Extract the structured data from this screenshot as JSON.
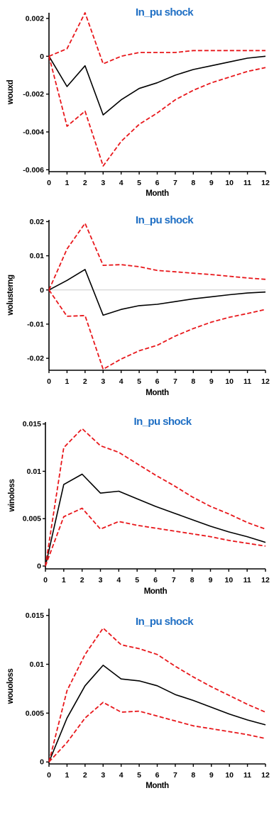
{
  "chart_data": [
    {
      "type": "line",
      "title": "In_pu shock",
      "xlabel": "Month",
      "ylabel": "wouxd",
      "x": [
        0,
        1,
        2,
        3,
        4,
        5,
        6,
        7,
        8,
        9,
        10,
        11,
        12
      ],
      "x_ticks": [
        "0",
        "1",
        "2",
        "3",
        "4",
        "5",
        "6",
        "7",
        "8",
        "9",
        "10",
        "11",
        "12"
      ],
      "y_ticks": [
        0.002,
        0,
        -0.002,
        -0.004,
        -0.006
      ],
      "y_tick_labels": [
        "0.002",
        "0",
        "-0.002",
        "-0.004",
        "-0.006"
      ],
      "ylim": [
        -0.0061,
        0.0023
      ],
      "zero_line": false,
      "series": [
        {
          "role": "response",
          "color": "#000000",
          "dash": false,
          "values": [
            0,
            -0.0016,
            -0.0005,
            -0.0031,
            -0.0023,
            -0.0017,
            -0.0014,
            -0.001,
            -0.0007,
            -0.0005,
            -0.0003,
            -0.0001,
            0.0
          ]
        },
        {
          "role": "upper",
          "color": "#e8171b",
          "dash": true,
          "values": [
            0,
            0.0004,
            0.0023,
            -0.0004,
            0.0,
            0.0002,
            0.0002,
            0.0002,
            0.0003,
            0.0003,
            0.0003,
            0.0003,
            0.0003
          ]
        },
        {
          "role": "lower",
          "color": "#e8171b",
          "dash": true,
          "values": [
            0,
            -0.0037,
            -0.0029,
            -0.0058,
            -0.0045,
            -0.0036,
            -0.003,
            -0.0023,
            -0.0018,
            -0.0014,
            -0.0011,
            -0.0008,
            -0.0006
          ]
        }
      ]
    },
    {
      "type": "line",
      "title": "In_pu shock",
      "xlabel": "Month",
      "ylabel": "wolusterng",
      "x": [
        0,
        1,
        2,
        3,
        4,
        5,
        6,
        7,
        8,
        9,
        10,
        11,
        12
      ],
      "x_ticks": [
        "0",
        "1",
        "2",
        "3",
        "4",
        "5",
        "6",
        "7",
        "8",
        "9",
        "10",
        "11",
        "12"
      ],
      "y_ticks": [
        0.02,
        0.01,
        0,
        -0.01,
        -0.02
      ],
      "y_tick_labels": [
        "0.02",
        "0.01",
        "0",
        "-0.01",
        "-0.02"
      ],
      "ylim": [
        -0.0235,
        0.0205
      ],
      "zero_line": true,
      "series": [
        {
          "role": "response",
          "color": "#000000",
          "dash": false,
          "values": [
            0,
            0.0028,
            0.006,
            -0.0074,
            -0.0057,
            -0.0046,
            -0.0042,
            -0.0034,
            -0.0026,
            -0.002,
            -0.0014,
            -0.0009,
            -0.0006
          ]
        },
        {
          "role": "upper",
          "color": "#e8171b",
          "dash": true,
          "values": [
            0,
            0.012,
            0.0195,
            0.0072,
            0.0074,
            0.0068,
            0.0057,
            0.0053,
            0.0049,
            0.0045,
            0.004,
            0.0035,
            0.0031
          ]
        },
        {
          "role": "lower",
          "color": "#e8171b",
          "dash": true,
          "values": [
            0,
            -0.0077,
            -0.0075,
            -0.0232,
            -0.0202,
            -0.0178,
            -0.0162,
            -0.0135,
            -0.0113,
            -0.0094,
            -0.008,
            -0.0069,
            -0.0057
          ]
        }
      ]
    },
    {
      "type": "line",
      "title": "In_pu shock",
      "xlabel": "Month",
      "ylabel": "winoloss",
      "x": [
        0,
        1,
        2,
        3,
        4,
        5,
        6,
        7,
        8,
        9,
        10,
        11,
        12
      ],
      "x_ticks": [
        "0",
        "1",
        "2",
        "3",
        "4",
        "5",
        "6",
        "7",
        "8",
        "9",
        "10",
        "11",
        "12"
      ],
      "y_ticks": [
        0.015,
        0.01,
        0.005,
        0
      ],
      "y_tick_labels": [
        "0.015",
        "0.01",
        "0.005",
        "0"
      ],
      "ylim": [
        -0.0003,
        0.0152
      ],
      "zero_line": false,
      "series": [
        {
          "role": "response",
          "color": "#000000",
          "dash": false,
          "values": [
            0,
            0.0086,
            0.0097,
            0.0077,
            0.0079,
            0.0071,
            0.0063,
            0.0056,
            0.0049,
            0.0042,
            0.0036,
            0.0031,
            0.0025
          ]
        },
        {
          "role": "upper",
          "color": "#e8171b",
          "dash": true,
          "values": [
            0,
            0.0125,
            0.0145,
            0.0127,
            0.012,
            0.0108,
            0.0096,
            0.0085,
            0.0073,
            0.0063,
            0.0055,
            0.0046,
            0.0039
          ]
        },
        {
          "role": "lower",
          "color": "#e8171b",
          "dash": true,
          "values": [
            0,
            0.0052,
            0.0061,
            0.0039,
            0.0047,
            0.0043,
            0.004,
            0.0037,
            0.0034,
            0.0031,
            0.0027,
            0.0024,
            0.0021
          ]
        }
      ]
    },
    {
      "type": "line",
      "title": "In_pu shock",
      "xlabel": "Month",
      "ylabel": "wouoloss",
      "x": [
        0,
        1,
        2,
        3,
        4,
        5,
        6,
        7,
        8,
        9,
        10,
        11,
        12
      ],
      "x_ticks": [
        "0",
        "1",
        "2",
        "3",
        "4",
        "5",
        "6",
        "7",
        "8",
        "9",
        "10",
        "11",
        "12"
      ],
      "y_ticks": [
        0.015,
        0.01,
        0.005,
        0
      ],
      "y_tick_labels": [
        "0.015",
        "0.01",
        "0.005",
        "0"
      ],
      "ylim": [
        -0.0002,
        0.0157
      ],
      "zero_line": false,
      "series": [
        {
          "role": "response",
          "color": "#000000",
          "dash": false,
          "values": [
            0,
            0.0045,
            0.0078,
            0.0099,
            0.0085,
            0.0083,
            0.0078,
            0.0069,
            0.0063,
            0.0056,
            0.0049,
            0.0043,
            0.0038
          ]
        },
        {
          "role": "upper",
          "color": "#e8171b",
          "dash": true,
          "values": [
            0,
            0.0073,
            0.011,
            0.0137,
            0.012,
            0.0116,
            0.011,
            0.0098,
            0.0087,
            0.0077,
            0.0068,
            0.0059,
            0.0051
          ]
        },
        {
          "role": "lower",
          "color": "#e8171b",
          "dash": true,
          "values": [
            0,
            0.002,
            0.0045,
            0.0061,
            0.0051,
            0.0052,
            0.0047,
            0.0042,
            0.0037,
            0.0034,
            0.0031,
            0.0028,
            0.0024
          ]
        }
      ]
    }
  ]
}
